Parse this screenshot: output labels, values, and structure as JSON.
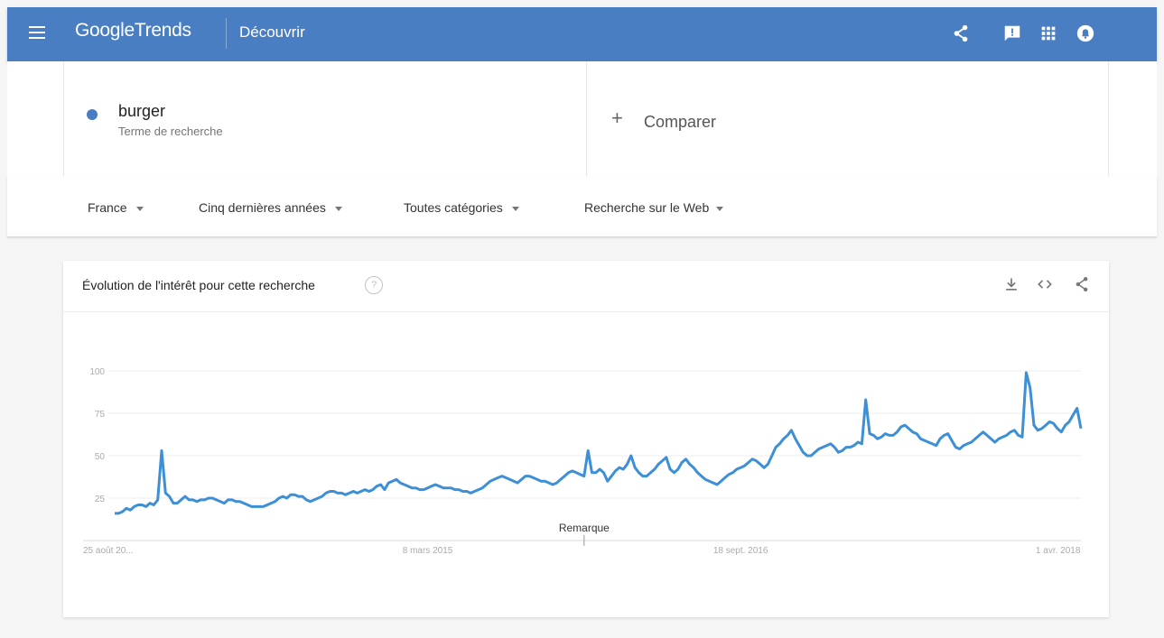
{
  "header": {
    "logo_google": "Google",
    "logo_trends": "Trends",
    "explore": "Découvrir",
    "icons": [
      "menu-icon",
      "share-icon",
      "feedback-icon",
      "apps-icon",
      "notifications-icon"
    ],
    "bar_color": "#4a7ec2"
  },
  "search": {
    "term": "burger",
    "term_type": "Terme de recherche",
    "term_color": "#4a7ec2",
    "compare_label": "Comparer",
    "compare_icon": "+"
  },
  "filters": {
    "region": "France",
    "period": "Cinq dernières années",
    "category": "Toutes catégories",
    "search_type": "Recherche sur le Web"
  },
  "card": {
    "title": "Évolution de l'intérêt pour cette recherche",
    "help_glyph": "?",
    "icons": [
      "download-icon",
      "embed-icon",
      "share-icon"
    ]
  },
  "chart_data": {
    "type": "line",
    "title": "",
    "xlabel": "",
    "ylabel": "",
    "ylim": [
      0,
      100
    ],
    "yticks": [
      25,
      50,
      75,
      100
    ],
    "xtick_labels": [
      "25 août 20...",
      "8 mars 2015",
      "18 sept. 2016",
      "1 avr. 2018"
    ],
    "xtick_index": [
      0,
      80,
      160,
      240
    ],
    "annotation": "Remarque",
    "annotation_index": 120,
    "grid": true,
    "line_color": "#3d8fd6",
    "series": [
      {
        "values": [
          16,
          16,
          17,
          19,
          18,
          20,
          21,
          21,
          20,
          22,
          21,
          24,
          53,
          28,
          26,
          22,
          22,
          24,
          26,
          24,
          24,
          23,
          24,
          24,
          25,
          25,
          24,
          23,
          22,
          24,
          24,
          23,
          23,
          22,
          21,
          20,
          20,
          20,
          20,
          21,
          22,
          23,
          25,
          26,
          25,
          27,
          27,
          26,
          26,
          24,
          23,
          24,
          25,
          26,
          28,
          29,
          29,
          28,
          28,
          27,
          28,
          29,
          28,
          29,
          30,
          29,
          30,
          32,
          33,
          30,
          34,
          35,
          36,
          34,
          33,
          32,
          31,
          31,
          30,
          30,
          31,
          32,
          33,
          32,
          31,
          31,
          31,
          30,
          30,
          29,
          29,
          28,
          29,
          30,
          31,
          33,
          35,
          36,
          37,
          38,
          37,
          36,
          35,
          34,
          36,
          38,
          38,
          37,
          36,
          35,
          35,
          34,
          33,
          34,
          36,
          38,
          40,
          41,
          40,
          39,
          38,
          53,
          40,
          40,
          42,
          40,
          35,
          38,
          41,
          43,
          42,
          45,
          50,
          43,
          40,
          38,
          38,
          40,
          42,
          45,
          47,
          49,
          42,
          40,
          42,
          46,
          48,
          45,
          43,
          40,
          38,
          36,
          35,
          34,
          33,
          35,
          37,
          39,
          40,
          42,
          43,
          44,
          46,
          48,
          47,
          45,
          43,
          45,
          50,
          55,
          57,
          60,
          62,
          65,
          60,
          56,
          52,
          50,
          50,
          52,
          54,
          55,
          56,
          57,
          55,
          52,
          53,
          55,
          55,
          56,
          58,
          57,
          83,
          63,
          62,
          60,
          61,
          63,
          62,
          62,
          64,
          67,
          68,
          66,
          64,
          63,
          60,
          59,
          58,
          57,
          56,
          60,
          62,
          63,
          59,
          55,
          54,
          56,
          57,
          58,
          60,
          62,
          64,
          62,
          60,
          58,
          60,
          61,
          62,
          64,
          65,
          62,
          61,
          99,
          90,
          68,
          65,
          66,
          68,
          70,
          69,
          66,
          64,
          68,
          70,
          74,
          78,
          66
        ]
      }
    ]
  }
}
